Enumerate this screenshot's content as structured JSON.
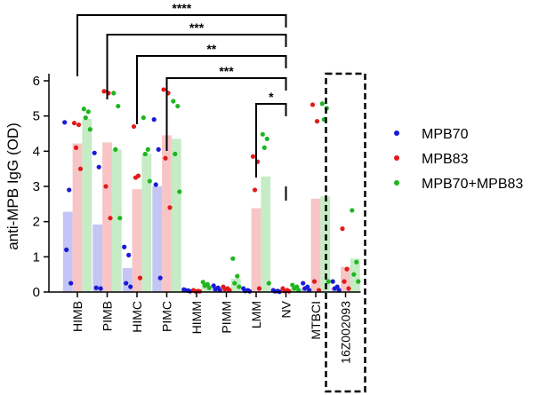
{
  "chart_data": {
    "type": "bar",
    "title": "",
    "xlabel": "",
    "ylabel": "anti-MPB IgG (OD)",
    "ylim": [
      0,
      6.5
    ],
    "yticks": [
      0,
      1,
      2,
      3,
      4,
      5,
      6
    ],
    "categories": [
      "HIMB",
      "PIMB",
      "HIMC",
      "PIMC",
      "HIMM",
      "PIMM",
      "LMM",
      "NV",
      "MTBCI",
      "16Z002093"
    ],
    "highlighted_category": "16Z002093",
    "series": [
      {
        "name": "MPB70",
        "color": "#1a1ad6",
        "bar_color": "#c5c5f5",
        "values": [
          2.28,
          1.92,
          0.68,
          3.0,
          0.05,
          0.12,
          0.05,
          0.03,
          0.12,
          0.12
        ],
        "points": [
          [
            4.82,
            2.9,
            1.2,
            0.25
          ],
          [
            3.95,
            3.55,
            0.12,
            0.1
          ],
          [
            1.28,
            1.05,
            0.25,
            0.15
          ],
          [
            4.9,
            4.05,
            3.05,
            0.4
          ],
          [
            0.07,
            0.04,
            0.05,
            0.02
          ],
          [
            0.18,
            0.12,
            0.08,
            0.05
          ],
          [
            0.1,
            0.05,
            0.03,
            0.02
          ],
          [
            0.05,
            0.03,
            0.02,
            0.01
          ],
          [
            0.25,
            0.15,
            0.1,
            0.05
          ],
          [
            0.3,
            0.15,
            0.1,
            0.05
          ]
        ]
      },
      {
        "name": "MPB83",
        "color": "#e21a1a",
        "bar_color": "#f7c5c5",
        "values": [
          4.22,
          4.25,
          2.92,
          4.45,
          0.03,
          0.12,
          2.38,
          0.04,
          2.65,
          0.72
        ],
        "points": [
          [
            4.8,
            4.75,
            4.1,
            3.5
          ],
          [
            5.7,
            5.65,
            3.0,
            2.1
          ],
          [
            4.7,
            3.3,
            3.25,
            0.4
          ],
          [
            5.75,
            5.65,
            3.8,
            2.4
          ],
          [
            0.05,
            0.03,
            0.02,
            0.02
          ],
          [
            0.15,
            0.1,
            0.08,
            0.05
          ],
          [
            3.85,
            3.7,
            2.9,
            0.1
          ],
          [
            0.1,
            0.05,
            0.03,
            0.02
          ],
          [
            5.32,
            4.85,
            0.3,
            0.05
          ],
          [
            1.8,
            0.65,
            0.3,
            0.1
          ]
        ]
      },
      {
        "name": "MPB70+MPB83",
        "color": "#1fb51f",
        "bar_color": "#c5ecc5",
        "values": [
          4.92,
          4.05,
          3.93,
          4.35,
          0.2,
          0.38,
          3.28,
          0.12,
          2.72,
          0.95
        ],
        "points": [
          [
            5.2,
            5.12,
            4.95,
            4.62
          ],
          [
            5.65,
            5.28,
            4.05,
            2.1
          ],
          [
            4.95,
            4.05,
            3.92,
            3.15
          ],
          [
            5.42,
            5.28,
            3.92,
            2.85
          ],
          [
            0.28,
            0.22,
            0.18,
            0.12
          ],
          [
            0.95,
            0.45,
            0.25,
            0.15
          ],
          [
            4.48,
            4.35,
            4.1,
            0.25
          ],
          [
            0.2,
            0.15,
            0.1,
            0.05
          ],
          [
            5.35,
            5.22,
            4.9,
            0.3
          ],
          [
            2.32,
            0.85,
            0.5,
            0.3
          ]
        ]
      }
    ],
    "significance": [
      {
        "from": "HIMB",
        "to": "NV",
        "label": "****"
      },
      {
        "from": "PIMB",
        "to": "NV",
        "label": "***"
      },
      {
        "from": "HIMC",
        "to": "NV",
        "label": "**"
      },
      {
        "from": "PIMC",
        "to": "NV",
        "label": "***"
      },
      {
        "from": "LMM",
        "to": "NV",
        "label": "*"
      }
    ],
    "legend_position": "right"
  }
}
